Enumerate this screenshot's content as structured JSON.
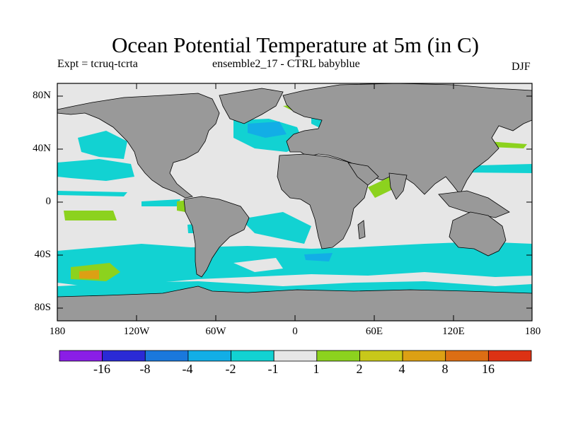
{
  "title": "Ocean Potential Temperature at 5m (in C)",
  "expt_label": "Expt = tcruq-tcrta",
  "subtitle": "ensemble2_17 - CTRL babyblue",
  "season": "DJF",
  "map": {
    "ocean_color": "#e6e6e6",
    "land_color": "#999999",
    "lat_ticks": [
      "80N",
      "40N",
      "0",
      "40S",
      "80S"
    ],
    "lon_ticks": [
      "180",
      "120W",
      "60W",
      "0",
      "60E",
      "120E",
      "180"
    ]
  },
  "colorbar": {
    "colors": [
      "#8a1ee6",
      "#2a2ad6",
      "#1a78dc",
      "#12aee6",
      "#12d2d2",
      "#e6e6e6",
      "#8cd21e",
      "#c8c81a",
      "#dca014",
      "#dc6e14",
      "#dc3214"
    ],
    "labels": [
      "-16",
      "-8",
      "-4",
      "-2",
      "-1",
      "1",
      "2",
      "4",
      "8",
      "16"
    ]
  }
}
